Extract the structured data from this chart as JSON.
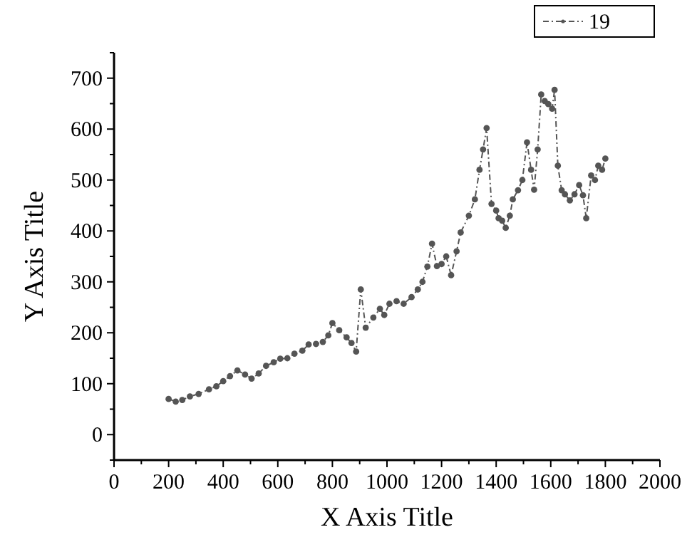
{
  "chart_data": {
    "type": "line",
    "xlabel": "X  Axis Title",
    "ylabel": "Y  Axis Title",
    "xlim": [
      0,
      2000
    ],
    "xticks": [
      0,
      200,
      400,
      600,
      800,
      1000,
      1200,
      1400,
      1600,
      1800,
      2000
    ],
    "ylim": [
      -50,
      750
    ],
    "yticks": [
      0,
      100,
      200,
      300,
      400,
      500,
      600,
      700
    ],
    "legend": "top right",
    "marker": "circle",
    "line_style": "dashed",
    "x": [
      200,
      226,
      250,
      278,
      310,
      348,
      375,
      400,
      425,
      452,
      480,
      504,
      530,
      557,
      585,
      609,
      635,
      661,
      690,
      713,
      740,
      765,
      785,
      800,
      825,
      852,
      870,
      887,
      904,
      922,
      950,
      974,
      990,
      1009,
      1035,
      1061,
      1090,
      1113,
      1130,
      1148,
      1165,
      1183,
      1200,
      1217,
      1235,
      1255,
      1270,
      1300,
      1322,
      1339,
      1352,
      1365,
      1383,
      1400,
      1409,
      1422,
      1435,
      1450,
      1461,
      1480,
      1496,
      1513,
      1528,
      1539,
      1552,
      1565,
      1578,
      1591,
      1605,
      1614,
      1626,
      1640,
      1652,
      1670,
      1687,
      1704,
      1718,
      1730,
      1748,
      1762,
      1774,
      1788,
      1800
    ],
    "series": [
      {
        "name": "19",
        "color": "#555555",
        "values": [
          70,
          65,
          68,
          75,
          80,
          89,
          95,
          105,
          115,
          126,
          118,
          110,
          120,
          135,
          142,
          149,
          150,
          159,
          165,
          177,
          178,
          182,
          195,
          219,
          205,
          191,
          180,
          163,
          285,
          210,
          230,
          247,
          235,
          257,
          262,
          257,
          270,
          285,
          300,
          330,
          375,
          331,
          335,
          350,
          313,
          360,
          397,
          430,
          462,
          520,
          560,
          602,
          453,
          440,
          425,
          420,
          406,
          430,
          462,
          480,
          500,
          574,
          520,
          481,
          560,
          668,
          655,
          649,
          640,
          677,
          528,
          480,
          472,
          460,
          472,
          490,
          470,
          425,
          509,
          500,
          528,
          520,
          542
        ]
      }
    ]
  }
}
